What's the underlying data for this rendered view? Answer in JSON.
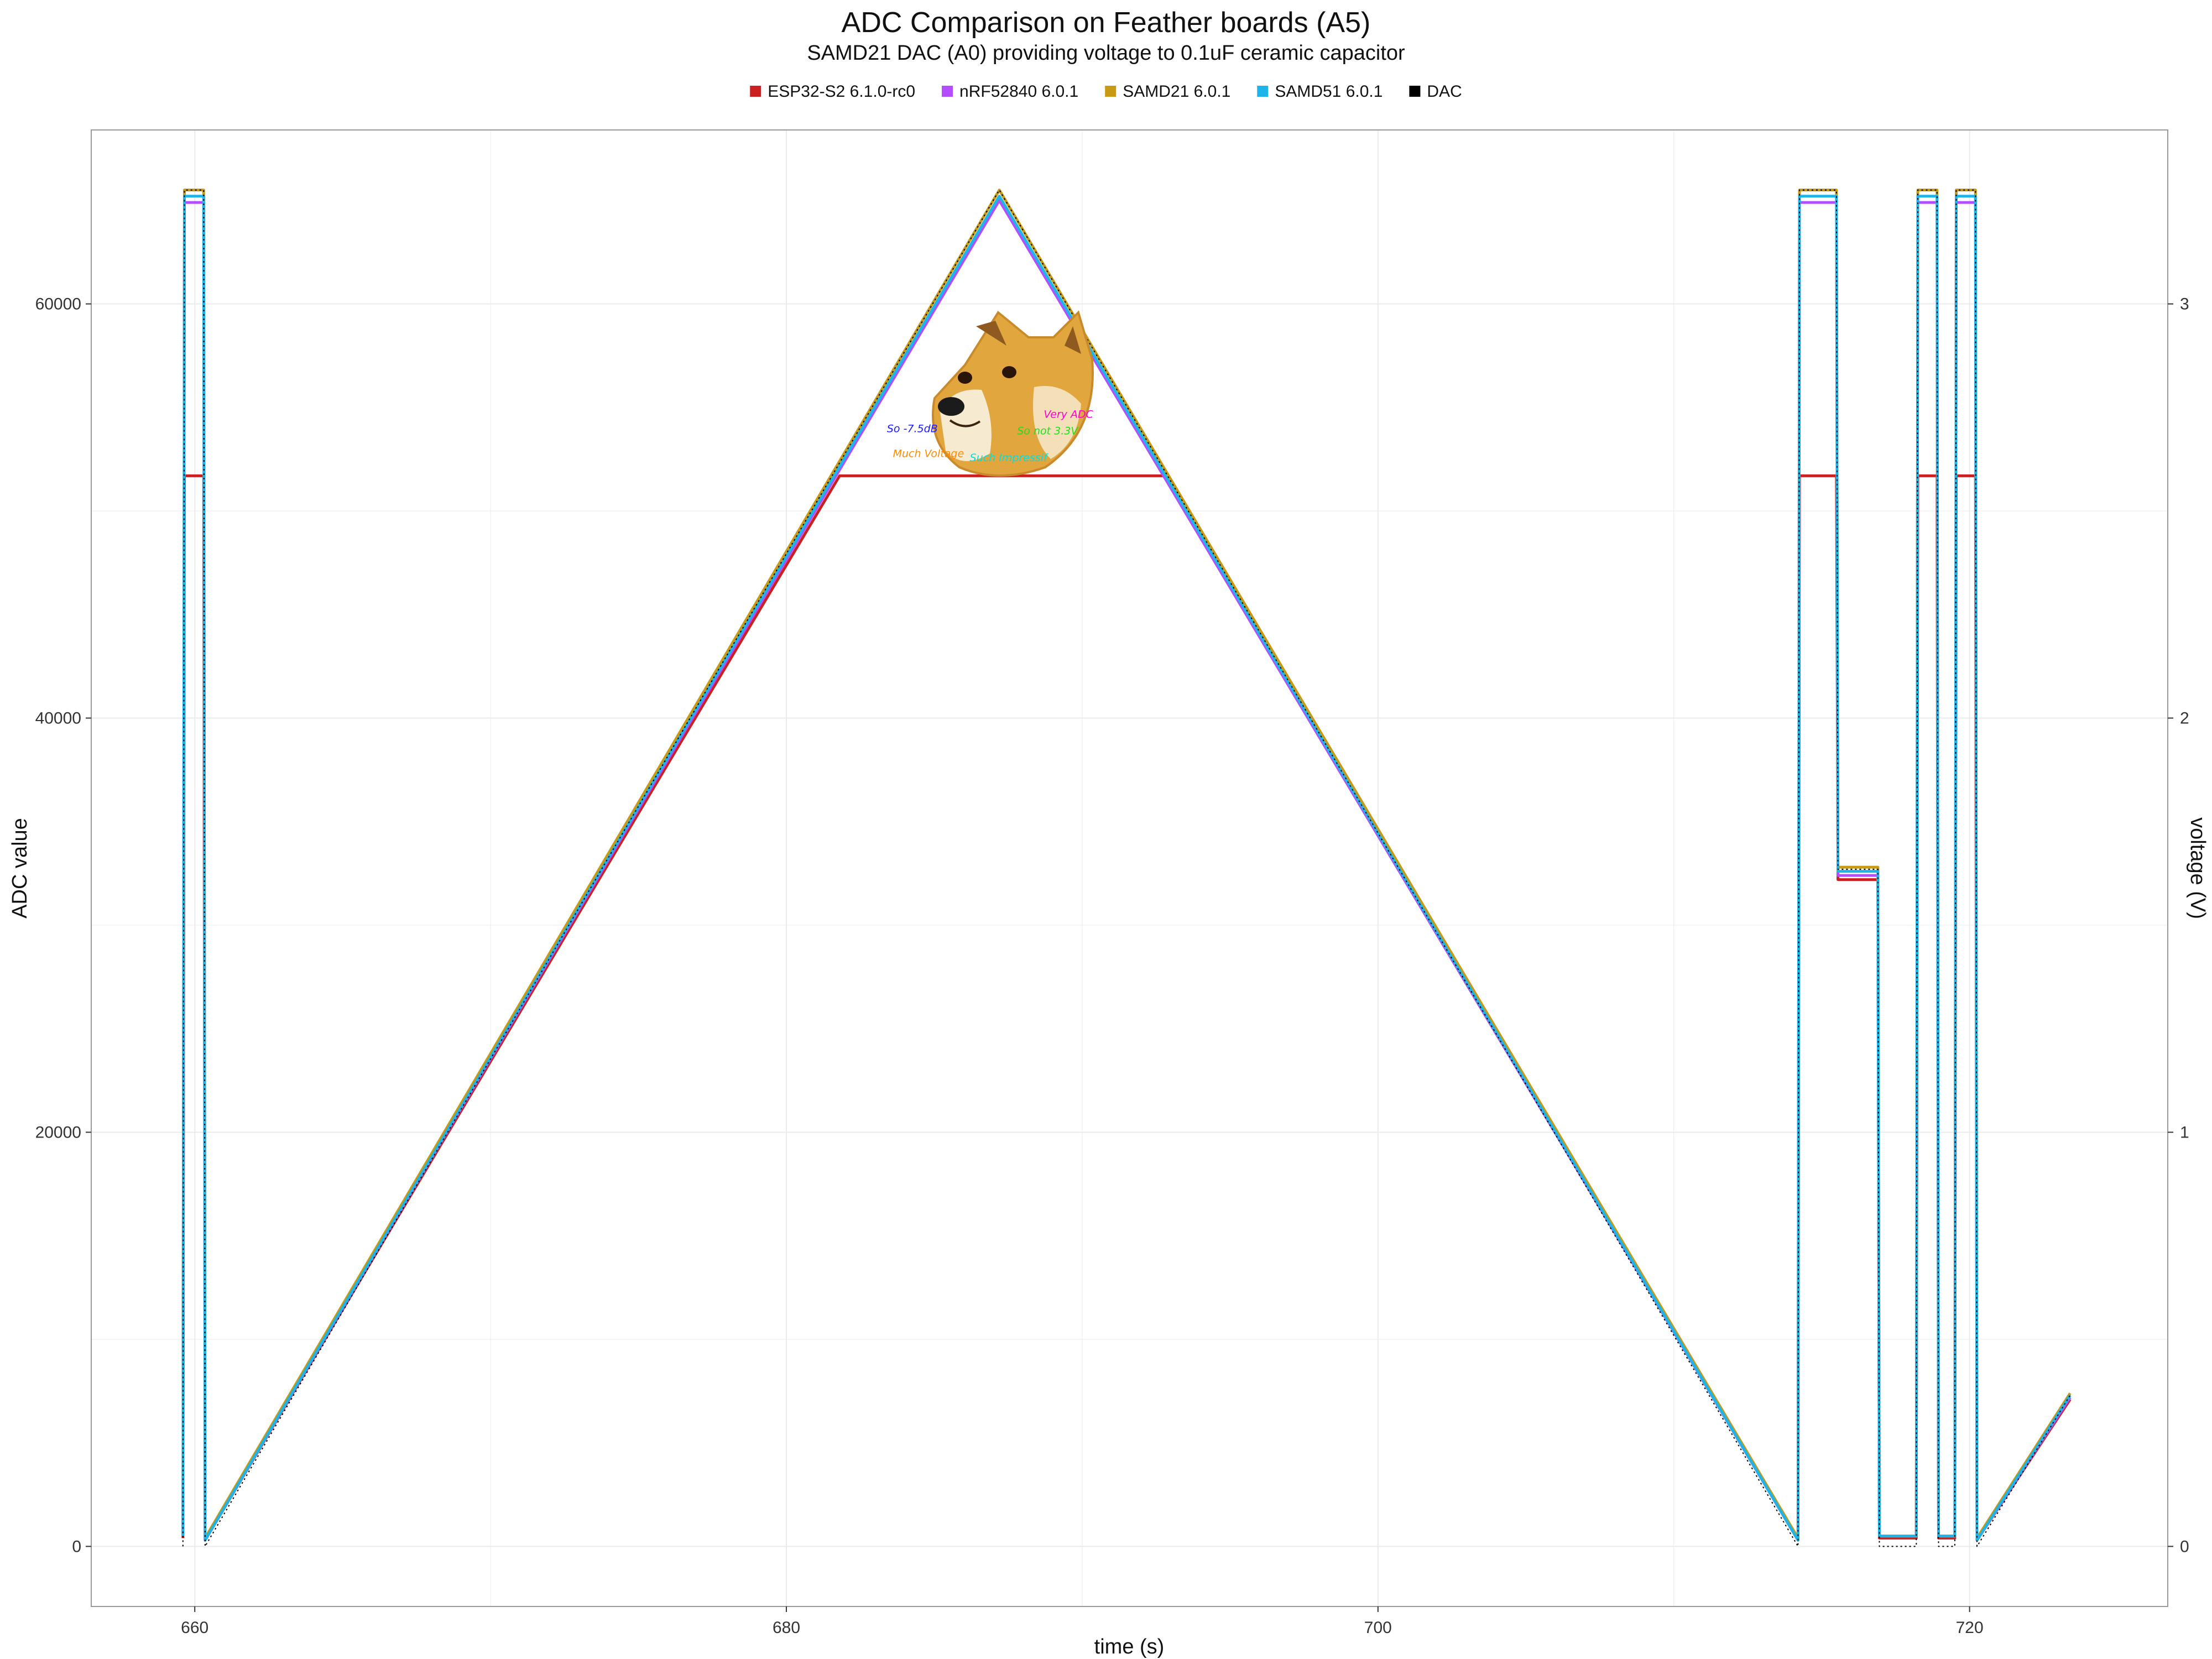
{
  "chart_data": {
    "type": "line",
    "title": "ADC Comparison on Feather boards (A5)",
    "subtitle": "SAMD21 DAC (A0) providing voltage to 0.1uF ceramic capacitor",
    "xlabel": "time (s)",
    "ylabel": "ADC value",
    "y2label": "voltage (V)",
    "xlim": [
      656.5,
      726.7
    ],
    "ylim": [
      -2900,
      68400
    ],
    "x_ticks": [
      660,
      680,
      700,
      720
    ],
    "x_tick_labels": [
      "660",
      "680",
      "700",
      "720"
    ],
    "y_ticks": [
      0,
      20000,
      40000,
      60000
    ],
    "y_tick_labels": [
      "0",
      "20000",
      "40000",
      "60000"
    ],
    "y2_ticks": [
      0,
      1,
      2,
      3
    ],
    "y2_tick_labels": [
      "0",
      "1",
      "2",
      "3"
    ],
    "y2_scale_adc_per_volt": 20000,
    "grid": true,
    "legend_position": "top",
    "series": [
      {
        "name": "ESP32-S2 6.1.0-rc0",
        "color": "#cc1f1f",
        "points": [
          [
            659.6,
            400
          ],
          [
            659.65,
            51700
          ],
          [
            660.3,
            51700
          ],
          [
            660.35,
            300
          ],
          [
            681.8,
            51700
          ],
          [
            692.8,
            51700
          ],
          [
            714.2,
            300
          ],
          [
            714.25,
            51700
          ],
          [
            715.5,
            51700
          ],
          [
            715.55,
            32200
          ],
          [
            716.9,
            32200
          ],
          [
            716.95,
            400
          ],
          [
            718.2,
            400
          ],
          [
            718.25,
            51700
          ],
          [
            718.9,
            51700
          ],
          [
            718.95,
            400
          ],
          [
            719.5,
            400
          ],
          [
            719.55,
            51700
          ],
          [
            720.2,
            51700
          ],
          [
            720.25,
            300
          ],
          [
            723.4,
            7100
          ]
        ]
      },
      {
        "name": "nRF52840 6.0.1",
        "color": "#b44cff",
        "points": [
          [
            659.6,
            500
          ],
          [
            659.65,
            64900
          ],
          [
            660.3,
            64900
          ],
          [
            660.35,
            300
          ],
          [
            687.2,
            65000
          ],
          [
            714.2,
            300
          ],
          [
            714.25,
            64900
          ],
          [
            715.5,
            64900
          ],
          [
            715.55,
            32400
          ],
          [
            716.9,
            32400
          ],
          [
            716.95,
            500
          ],
          [
            718.2,
            500
          ],
          [
            718.25,
            64900
          ],
          [
            718.9,
            64900
          ],
          [
            718.95,
            500
          ],
          [
            719.5,
            500
          ],
          [
            719.55,
            64900
          ],
          [
            720.2,
            64900
          ],
          [
            720.25,
            300
          ],
          [
            723.4,
            7200
          ]
        ]
      },
      {
        "name": "SAMD21  6.0.1",
        "color": "#c89a14",
        "points": [
          [
            659.6,
            500
          ],
          [
            659.65,
            65500
          ],
          [
            660.3,
            65500
          ],
          [
            660.35,
            400
          ],
          [
            687.2,
            65500
          ],
          [
            714.2,
            400
          ],
          [
            714.25,
            65500
          ],
          [
            715.5,
            65500
          ],
          [
            715.55,
            32800
          ],
          [
            716.9,
            32800
          ],
          [
            716.95,
            500
          ],
          [
            718.2,
            500
          ],
          [
            718.25,
            65500
          ],
          [
            718.9,
            65500
          ],
          [
            718.95,
            500
          ],
          [
            719.5,
            500
          ],
          [
            719.55,
            65500
          ],
          [
            720.2,
            65500
          ],
          [
            720.25,
            400
          ],
          [
            723.4,
            7400
          ]
        ]
      },
      {
        "name": "SAMD51 6.0.1",
        "color": "#1fb4e8",
        "points": [
          [
            659.6,
            500
          ],
          [
            659.65,
            65200
          ],
          [
            660.3,
            65200
          ],
          [
            660.35,
            300
          ],
          [
            687.2,
            65200
          ],
          [
            714.2,
            300
          ],
          [
            714.25,
            65200
          ],
          [
            715.5,
            65200
          ],
          [
            715.55,
            32600
          ],
          [
            716.9,
            32600
          ],
          [
            716.95,
            500
          ],
          [
            718.2,
            500
          ],
          [
            718.25,
            65200
          ],
          [
            718.9,
            65200
          ],
          [
            718.95,
            500
          ],
          [
            719.5,
            500
          ],
          [
            719.55,
            65200
          ],
          [
            720.2,
            65200
          ],
          [
            720.25,
            300
          ],
          [
            723.4,
            7300
          ]
        ]
      },
      {
        "name": "DAC",
        "color": "#000000",
        "style": "dotted",
        "points": [
          [
            659.6,
            0
          ],
          [
            659.65,
            65500
          ],
          [
            660.3,
            65500
          ],
          [
            660.35,
            0
          ],
          [
            687.2,
            65500
          ],
          [
            714.2,
            0
          ],
          [
            714.25,
            65500
          ],
          [
            715.5,
            65500
          ],
          [
            715.55,
            32700
          ],
          [
            716.9,
            32700
          ],
          [
            716.95,
            0
          ],
          [
            718.2,
            0
          ],
          [
            718.25,
            65500
          ],
          [
            718.9,
            65500
          ],
          [
            718.95,
            0
          ],
          [
            719.5,
            0
          ],
          [
            719.55,
            65500
          ],
          [
            720.2,
            65500
          ],
          [
            720.25,
            0
          ],
          [
            723.4,
            7300
          ]
        ]
      }
    ],
    "annotations": [
      {
        "text": "So -7.5dB",
        "x": 683.4,
        "y": 53800,
        "color": "#1a1aff"
      },
      {
        "text": "Much Voltage",
        "x": 683.6,
        "y": 52600,
        "color": "#ff8c00"
      },
      {
        "text": "Very ADC",
        "x": 688.7,
        "y": 54500,
        "color": "#ff00d0"
      },
      {
        "text": "So not 3.3V",
        "x": 687.8,
        "y": 53700,
        "color": "#22dd22"
      },
      {
        "text": "Such Impressif",
        "x": 686.2,
        "y": 52400,
        "color": "#00e0e0"
      }
    ]
  }
}
